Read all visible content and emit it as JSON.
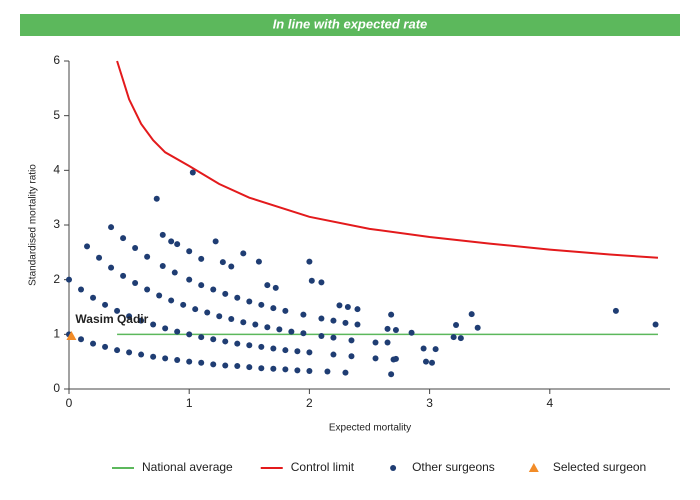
{
  "chart_data": {
    "type": "scatter",
    "title": "In line with expected rate",
    "title_background": "#5cb85c",
    "x_label": "Expected mortality",
    "y_label": "Standardised mortality ratio",
    "xlim": [
      0,
      5
    ],
    "ylim": [
      0,
      6
    ],
    "xticks": [
      0,
      1,
      2,
      3,
      4
    ],
    "yticks": [
      0,
      1,
      2,
      3,
      4,
      5,
      6
    ],
    "grid": false,
    "legend": "bottom",
    "selected_label": "Wasim Qadir",
    "series": [
      {
        "name": "National average",
        "color": "#5cb85c",
        "mode": "line",
        "x": [
          0.4,
          4.9
        ],
        "y": [
          1,
          1
        ]
      },
      {
        "name": "Control limit",
        "color": "#e31a1c",
        "mode": "line",
        "x": [
          0.4,
          0.5,
          0.6,
          0.7,
          0.8,
          1.0,
          1.25,
          1.5,
          2,
          2.5,
          3,
          3.5,
          4,
          4.5,
          4.9
        ],
        "y": [
          6.0,
          5.3,
          4.85,
          4.55,
          4.33,
          4.08,
          3.75,
          3.5,
          3.15,
          2.93,
          2.78,
          2.66,
          2.55,
          2.46,
          2.4
        ]
      },
      {
        "name": "Other surgeons",
        "color": "#1f3d73",
        "mode": "marker",
        "marker": "circle",
        "x": [
          0,
          0.1,
          0.2,
          0.3,
          0.4,
          0.5,
          0.6,
          0.7,
          0.8,
          0.9,
          1.0,
          1.1,
          1.2,
          1.3,
          1.4,
          1.5,
          1.6,
          1.7,
          1.8,
          1.9,
          2.0,
          2.15,
          2.3,
          2.68,
          2.97,
          3.02,
          0,
          0.1,
          0.2,
          0.3,
          0.4,
          0.5,
          0.6,
          0.7,
          0.8,
          0.9,
          1.0,
          1.1,
          1.2,
          1.3,
          1.4,
          1.5,
          1.6,
          1.7,
          1.8,
          1.9,
          2.0,
          2.2,
          2.35,
          2.55,
          2.7,
          2.95,
          3.05,
          3.2,
          3.26,
          0.15,
          0.25,
          0.35,
          0.45,
          0.55,
          0.65,
          0.75,
          0.85,
          0.95,
          1.05,
          1.15,
          1.25,
          1.35,
          1.45,
          1.55,
          1.65,
          1.75,
          1.85,
          1.95,
          2.1,
          2.2,
          2.35,
          2.55,
          2.72,
          2.85,
          0.35,
          0.45,
          0.55,
          0.65,
          0.78,
          0.88,
          1.0,
          1.1,
          1.2,
          1.3,
          1.4,
          1.5,
          1.6,
          1.7,
          1.8,
          1.95,
          2.1,
          2.2,
          2.3,
          2.65,
          2.68,
          0.73,
          1.03,
          0.78,
          0.85,
          0.9,
          1.0,
          1.1,
          1.22,
          1.28,
          1.35,
          1.45,
          1.58,
          1.65,
          1.72,
          2.0,
          2.02,
          2.1,
          2.25,
          2.32,
          2.4,
          2.4,
          2.65,
          2.72,
          3.22,
          3.35,
          3.4,
          4.55,
          4.88
        ],
        "y": [
          1,
          0.91,
          0.83,
          0.77,
          0.71,
          0.67,
          0.63,
          0.59,
          0.56,
          0.53,
          0.5,
          0.48,
          0.45,
          0.43,
          0.42,
          0.4,
          0.38,
          0.37,
          0.36,
          0.34,
          0.33,
          0.32,
          0.3,
          0.27,
          0.5,
          0.48,
          2,
          1.82,
          1.67,
          1.54,
          1.43,
          1.33,
          1.25,
          1.18,
          1.11,
          1.05,
          1.0,
          0.95,
          0.91,
          0.87,
          0.83,
          0.8,
          0.77,
          0.74,
          0.71,
          0.69,
          0.67,
          0.63,
          0.6,
          0.56,
          0.54,
          0.74,
          0.73,
          0.95,
          0.93,
          2.61,
          2.4,
          2.22,
          2.07,
          1.94,
          1.82,
          1.71,
          1.62,
          1.54,
          1.46,
          1.4,
          1.33,
          1.28,
          1.22,
          1.18,
          1.13,
          1.09,
          1.05,
          1.02,
          0.97,
          0.94,
          0.89,
          0.85,
          1.08,
          1.03,
          2.96,
          2.76,
          2.58,
          2.42,
          2.25,
          2.13,
          2.0,
          1.9,
          1.82,
          1.74,
          1.67,
          1.6,
          1.54,
          1.48,
          1.43,
          1.36,
          1.29,
          1.25,
          1.21,
          1.1,
          1.36,
          3.48,
          3.96,
          2.82,
          2.7,
          2.65,
          2.52,
          2.38,
          2.7,
          2.32,
          2.24,
          2.48,
          2.33,
          1.9,
          1.85,
          2.33,
          1.98,
          1.95,
          1.53,
          1.5,
          1.46,
          1.18,
          0.85,
          0.55,
          1.17,
          1.37,
          1.12,
          1.43,
          1.18
        ]
      },
      {
        "name": "Selected surgeon",
        "color": "#f28c28",
        "mode": "marker",
        "marker": "triangle",
        "x": [
          0.02
        ],
        "y": [
          0.97
        ]
      }
    ]
  }
}
